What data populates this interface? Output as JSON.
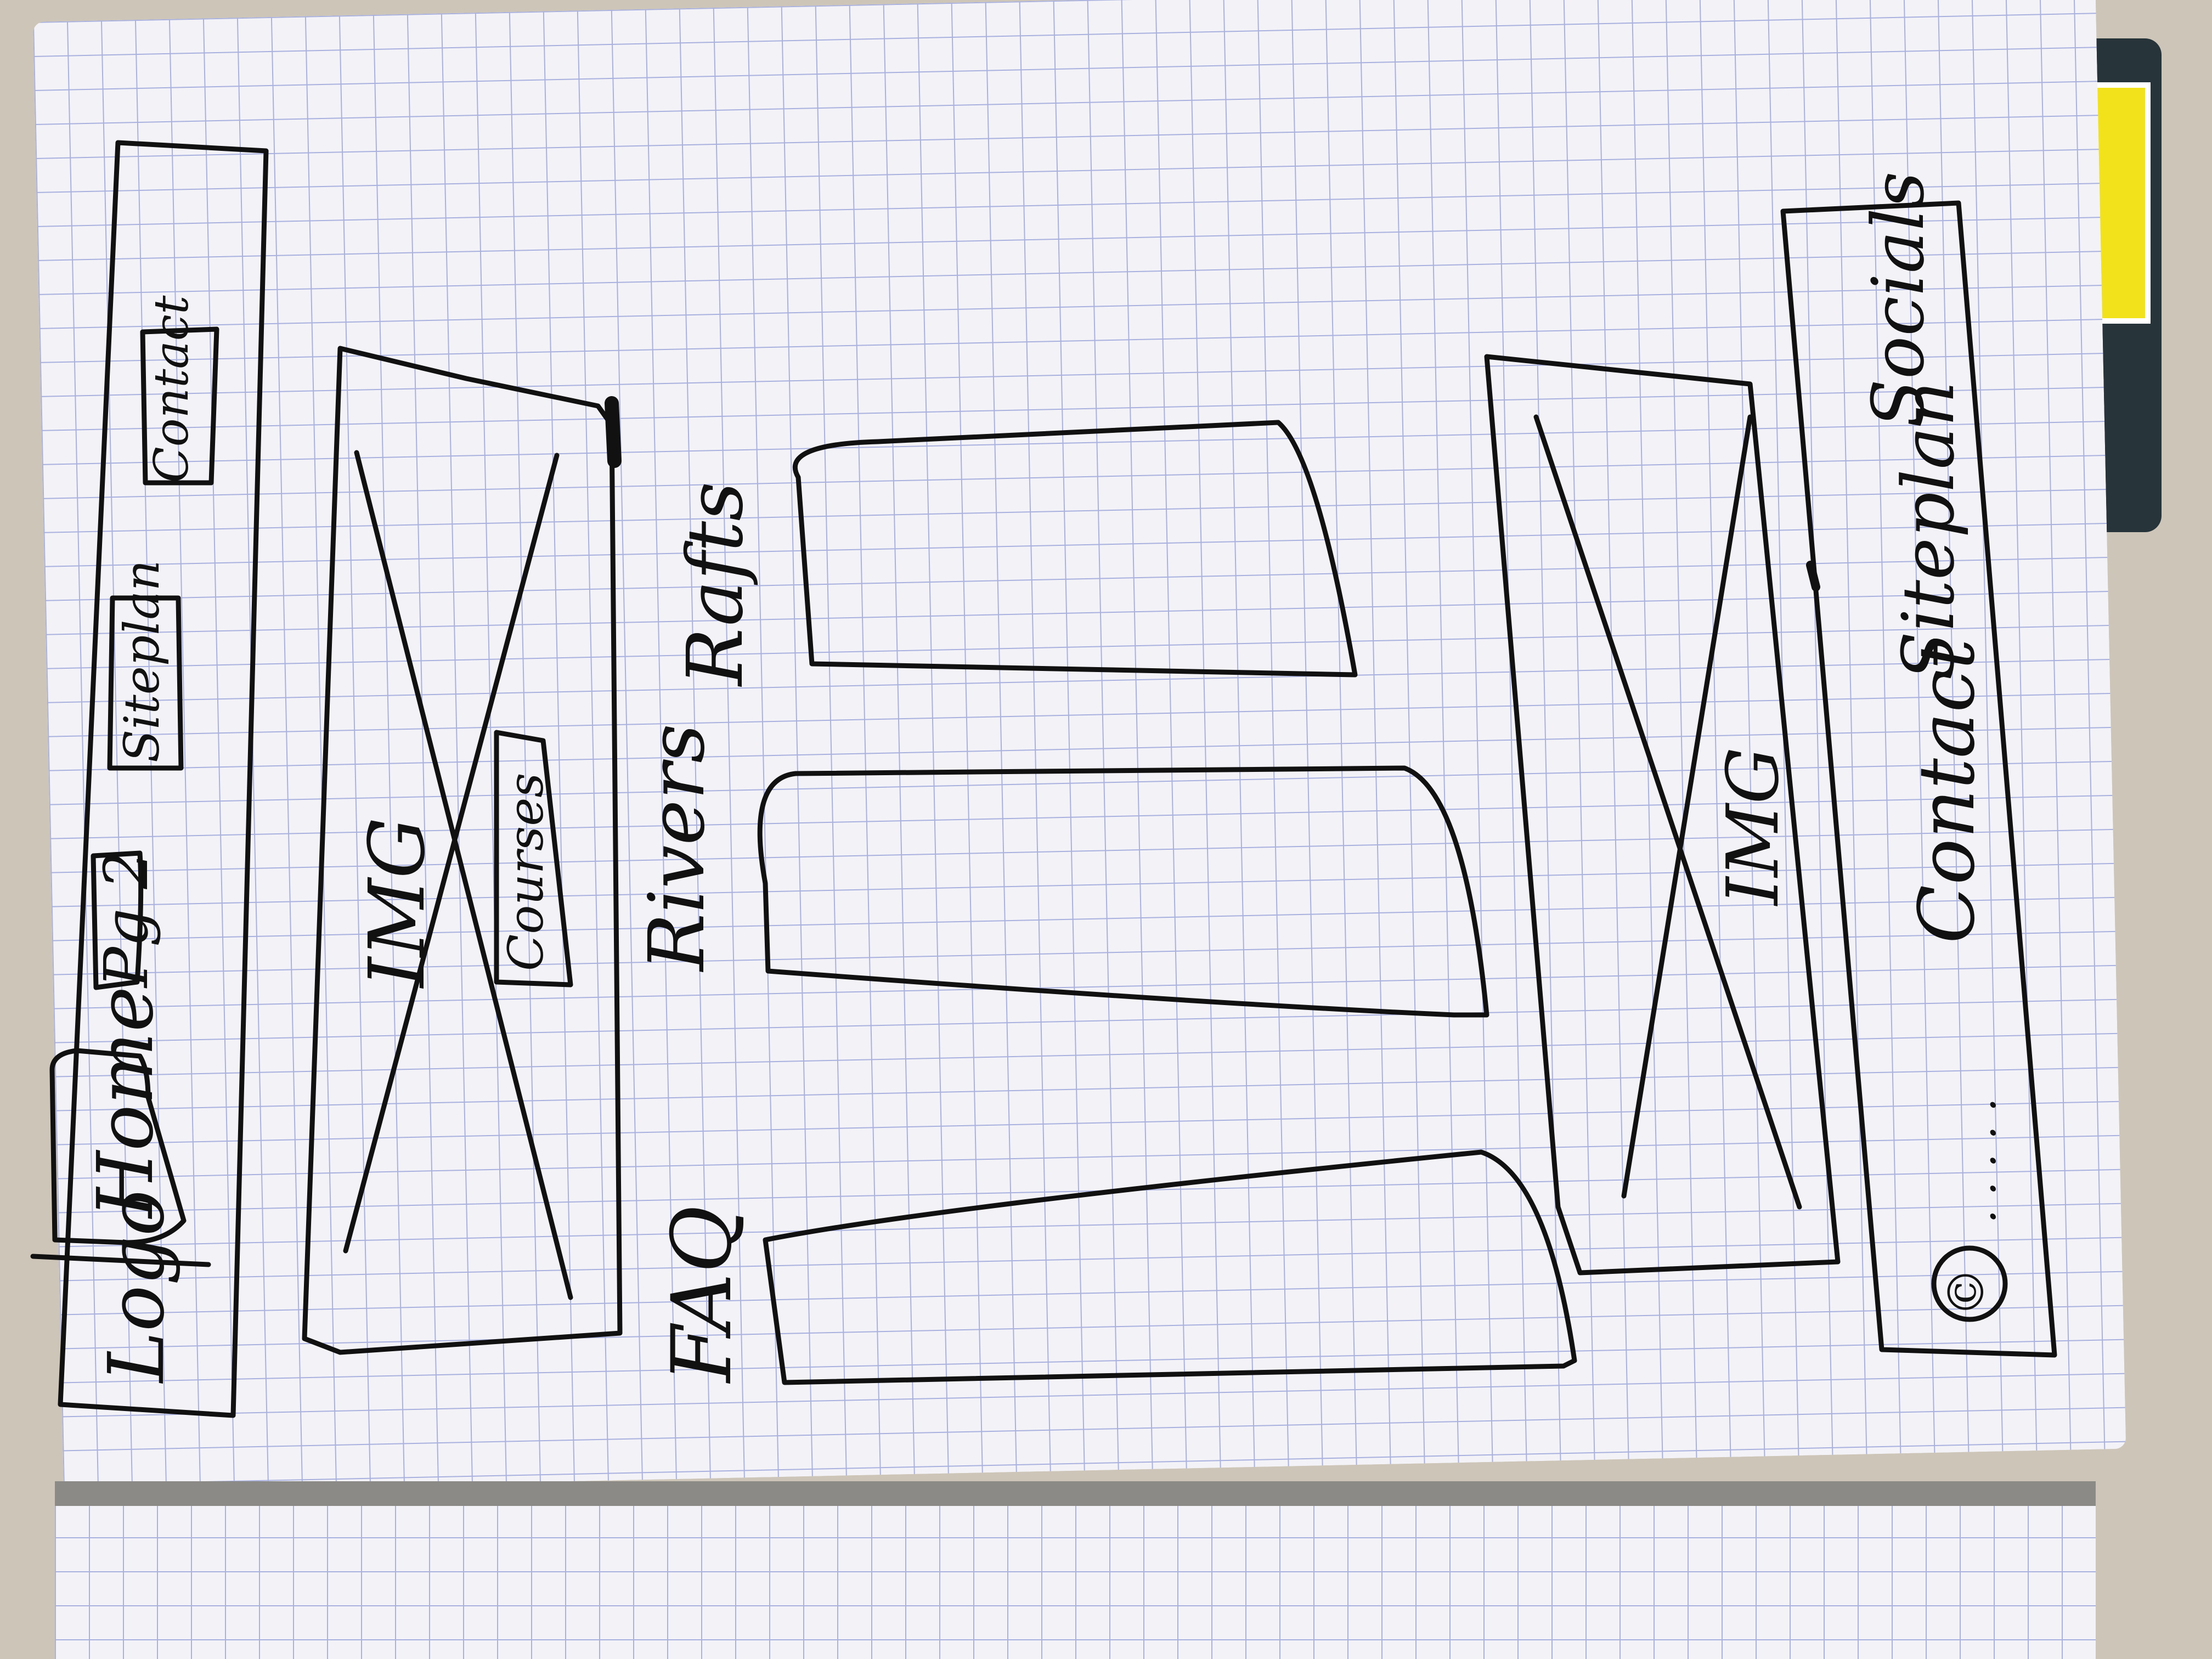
{
  "wireframe": {
    "header": {
      "logo": "Logo",
      "nav": [
        "Home",
        "Pg 2",
        "Siteplan",
        "Contact"
      ]
    },
    "hero": {
      "image_label": "IMG",
      "button_label": "Courses"
    },
    "content": {
      "sections": [
        "FAQ",
        "Rivers",
        "Rafts"
      ],
      "image_label": "IMG"
    },
    "footer": {
      "copyright": "©",
      "ellipsis": ". . . . .",
      "links": [
        "Contact",
        "Siteplan",
        "Socials"
      ]
    }
  },
  "colors": {
    "paper": "#f3f2f7",
    "grid": "#a9b1de",
    "ink": "#111111",
    "table": "#cdc6b8",
    "cover_accent": "#f2e21b"
  }
}
